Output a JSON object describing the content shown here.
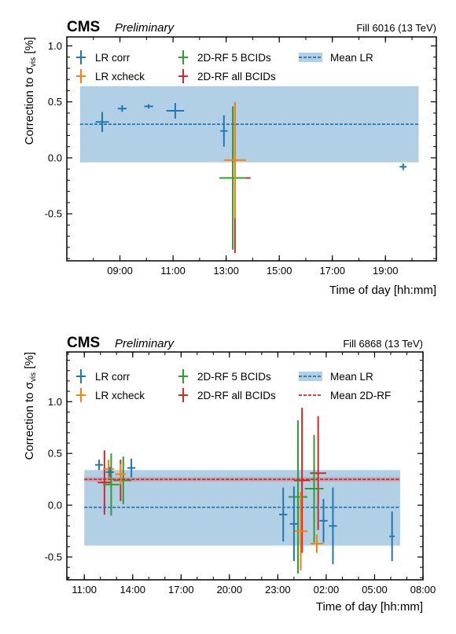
{
  "chart_data": [
    {
      "type": "scatter",
      "experiment": "CMS",
      "status": "Preliminary",
      "annotation": "Fill 6016 (13 TeV)",
      "xlabel": "Time of day [hh:mm]",
      "ylabel": "Correction to σ_vis [%]",
      "ylabel_main": "Correction to σ",
      "ylabel_sub": "vis",
      "ylabel_unit": " [%]",
      "xlim": [
        "07:00",
        "20:55"
      ],
      "ylim": [
        -0.92,
        1.08
      ],
      "x_ticks": [
        "09:00",
        "11:00",
        "13:00",
        "15:00",
        "17:00",
        "19:00"
      ],
      "y_ticks": [
        -0.5,
        0.0,
        0.5,
        1.0
      ],
      "y_tick_labels": [
        "-0.5",
        "0.0",
        "0.5",
        "1.0"
      ],
      "legend_position": "top",
      "bands": [
        {
          "name": "Mean LR",
          "center": 0.3,
          "low": -0.04,
          "high": 0.64,
          "x_start": "07:30",
          "x_end": "20:15",
          "color": "#1f77b4"
        }
      ],
      "series": [
        {
          "name": "LR corr",
          "color": "#1f77b4",
          "points": [
            {
              "x": "08:20",
              "xerr": 15,
              "y": 0.32,
              "yerr": 0.09
            },
            {
              "x": "09:05",
              "xerr": 10,
              "y": 0.44,
              "yerr": 0.03
            },
            {
              "x": "10:05",
              "xerr": 10,
              "y": 0.46,
              "yerr": 0.02
            },
            {
              "x": "11:05",
              "xerr": 20,
              "y": 0.42,
              "yerr": 0.07
            },
            {
              "x": "12:55",
              "xerr": 8,
              "y": 0.24,
              "yerr": 0.14
            },
            {
              "x": "19:40",
              "xerr": 8,
              "y": -0.08,
              "yerr": 0.03
            }
          ]
        },
        {
          "name": "LR xcheck",
          "color": "#ff7f0e",
          "points": [
            {
              "x": "13:20",
              "xerr": 25,
              "y": -0.02,
              "yerr": 0.52
            }
          ]
        },
        {
          "name": "2D-RF 5 BCIDs",
          "color": "#2ca02c",
          "points": [
            {
              "x": "13:15",
              "xerr": 30,
              "y": -0.18,
              "yerr": 0.64
            }
          ]
        },
        {
          "name": "2D-RF all BCIDs",
          "color": "#d62728",
          "points": [
            {
              "x": "13:20",
              "xerr": 35,
              "y": -0.18,
              "yerr": 0.67
            }
          ]
        }
      ],
      "lines": [
        {
          "name": "Mean LR",
          "y": 0.3,
          "color": "#1f77b4",
          "x_start": "07:30",
          "x_end": "20:15"
        }
      ]
    },
    {
      "type": "scatter",
      "experiment": "CMS",
      "status": "Preliminary",
      "annotation": "Fill 6868 (13 TeV)",
      "xlabel": "Time of day [hh:mm]",
      "ylabel": "Correction to σ_vis [%]",
      "ylabel_main": "Correction to σ",
      "ylabel_sub": "vis",
      "ylabel_unit": " [%]",
      "xlim": [
        "+09:55",
        "+32:00"
      ],
      "ylim": [
        -0.72,
        1.48
      ],
      "x_ticks": [
        "11:00",
        "14:00",
        "17:00",
        "20:00",
        "23:00",
        "02:00",
        "05:00",
        "08:00"
      ],
      "y_ticks": [
        -0.5,
        0.0,
        0.5,
        1.0
      ],
      "y_tick_labels": [
        "-0.5",
        "0.0",
        "0.5",
        "1.0"
      ],
      "legend_position": "top",
      "bands": [
        {
          "name": "Mean LR",
          "center": -0.02,
          "low": -0.39,
          "high": 0.34,
          "x_start": "+11:00",
          "x_end": "+30:35",
          "color": "#1f77b4"
        },
        {
          "name": "Mean 2D-RF",
          "center": 0.25,
          "low": 0.23,
          "high": 0.27,
          "x_start": "+11:00",
          "x_end": "+30:35",
          "color": "#d62728"
        }
      ],
      "series": [
        {
          "name": "LR corr",
          "color": "#1f77b4",
          "points": [
            {
              "x": "+11:55",
              "xerr": 15,
              "y": 0.39,
              "yerr": 0.05
            },
            {
              "x": "+12:35",
              "xerr": 15,
              "y": 0.32,
              "yerr": 0.05
            },
            {
              "x": "+13:55",
              "xerr": 15,
              "y": 0.36,
              "yerr": 0.09
            },
            {
              "x": "+23:20",
              "xerr": 15,
              "y": -0.09,
              "yerr": 0.26
            },
            {
              "x": "+24:00",
              "xerr": 15,
              "y": -0.18,
              "yerr": 0.36
            },
            {
              "x": "+25:50",
              "xerr": 15,
              "y": -0.15,
              "yerr": 0.21
            },
            {
              "x": "+26:25",
              "xerr": 15,
              "y": -0.2,
              "yerr": 0.37
            },
            {
              "x": "+30:05",
              "xerr": 10,
              "y": -0.3,
              "yerr": 0.24
            }
          ]
        },
        {
          "name": "LR xcheck",
          "color": "#ff7f0e",
          "points": [
            {
              "x": "+12:30",
              "xerr": 20,
              "y": 0.35,
              "yerr": 0.09
            },
            {
              "x": "+13:15",
              "xerr": 20,
              "y": 0.3,
              "yerr": 0.1
            },
            {
              "x": "+24:25",
              "xerr": 25,
              "y": -0.25,
              "yerr": 0.38
            },
            {
              "x": "+25:25",
              "xerr": 25,
              "y": -0.37,
              "yerr": 0.09
            }
          ]
        },
        {
          "name": "2D-RF 5 BCIDs",
          "color": "#2ca02c",
          "points": [
            {
              "x": "+12:40",
              "xerr": 30,
              "y": 0.2,
              "yerr": 0.3
            },
            {
              "x": "+13:25",
              "xerr": 30,
              "y": 0.24,
              "yerr": 0.23
            },
            {
              "x": "+24:15",
              "xerr": 35,
              "y": 0.08,
              "yerr": 0.74
            },
            {
              "x": "+25:15",
              "xerr": 35,
              "y": 0.16,
              "yerr": 0.52
            }
          ]
        },
        {
          "name": "2D-RF all BCIDs",
          "color": "#d62728",
          "points": [
            {
              "x": "+12:15",
              "xerr": 25,
              "y": 0.22,
              "yerr": 0.31
            },
            {
              "x": "+13:15",
              "xerr": 25,
              "y": 0.24,
              "yerr": 0.2
            },
            {
              "x": "+24:30",
              "xerr": 30,
              "y": 0.24,
              "yerr": 0.7
            },
            {
              "x": "+25:30",
              "xerr": 30,
              "y": 0.31,
              "yerr": 0.55
            }
          ]
        }
      ],
      "lines": [
        {
          "name": "Mean LR",
          "y": -0.02,
          "color": "#1f77b4",
          "x_start": "+11:00",
          "x_end": "+30:35"
        },
        {
          "name": "Mean 2D-RF",
          "y": 0.25,
          "color": "#d62728",
          "x_start": "+11:00",
          "x_end": "+30:35"
        }
      ],
      "legend_entries": [
        "LR corr",
        "LR xcheck",
        "2D-RF 5 BCIDs",
        "2D-RF all BCIDs",
        "Mean LR",
        "Mean 2D-RF"
      ]
    }
  ]
}
